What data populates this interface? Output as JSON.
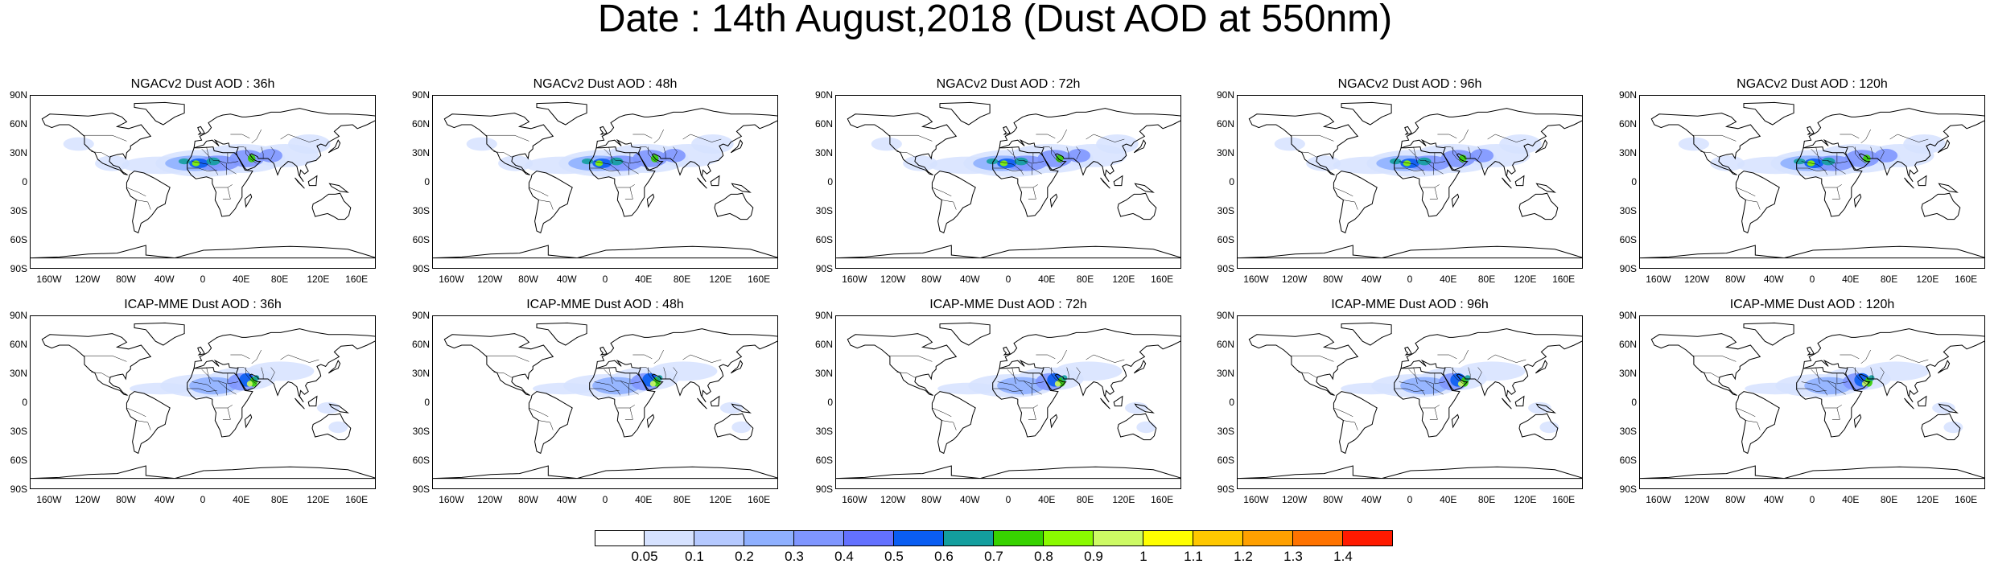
{
  "figure_title": "Date : 14th August,2018 (Dust AOD at 550nm)",
  "panels": [
    {
      "title": "NGACv2 Dust AOD : 36h",
      "model": "NGACv2",
      "lead": "36h"
    },
    {
      "title": "NGACv2 Dust AOD : 48h",
      "model": "NGACv2",
      "lead": "48h"
    },
    {
      "title": "NGACv2 Dust AOD : 72h",
      "model": "NGACv2",
      "lead": "72h"
    },
    {
      "title": "NGACv2 Dust AOD : 96h",
      "model": "NGACv2",
      "lead": "96h"
    },
    {
      "title": "NGACv2 Dust AOD : 120h",
      "model": "NGACv2",
      "lead": "120h"
    },
    {
      "title": "ICAP-MME Dust AOD : 36h",
      "model": "ICAP-MME",
      "lead": "36h"
    },
    {
      "title": "ICAP-MME Dust AOD : 48h",
      "model": "ICAP-MME",
      "lead": "48h"
    },
    {
      "title": "ICAP-MME Dust AOD : 72h",
      "model": "ICAP-MME",
      "lead": "72h"
    },
    {
      "title": "ICAP-MME Dust AOD : 96h",
      "model": "ICAP-MME",
      "lead": "96h"
    },
    {
      "title": "ICAP-MME Dust AOD : 120h",
      "model": "ICAP-MME",
      "lead": "120h"
    }
  ],
  "lat_ticks": [
    "90N",
    "60N",
    "30N",
    "0",
    "30S",
    "60S",
    "90S"
  ],
  "lon_ticks": [
    "160W",
    "120W",
    "80W",
    "40W",
    "0",
    "40E",
    "80E",
    "120E",
    "160E"
  ],
  "colorbar": {
    "levels": [
      "0.05",
      "0.1",
      "0.2",
      "0.3",
      "0.4",
      "0.5",
      "0.6",
      "0.7",
      "0.8",
      "0.9",
      "1",
      "1.1",
      "1.2",
      "1.3",
      "1.4"
    ],
    "colors": [
      "#ffffff",
      "#d6e2ff",
      "#b5c9ff",
      "#8fb0ff",
      "#7f96ff",
      "#6371ff",
      "#0a5df2",
      "#139e9e",
      "#37d200",
      "#8afa00",
      "#cdfa64",
      "#ffff00",
      "#ffc800",
      "#ffa000",
      "#ff7300",
      "#ff1a00"
    ]
  }
}
